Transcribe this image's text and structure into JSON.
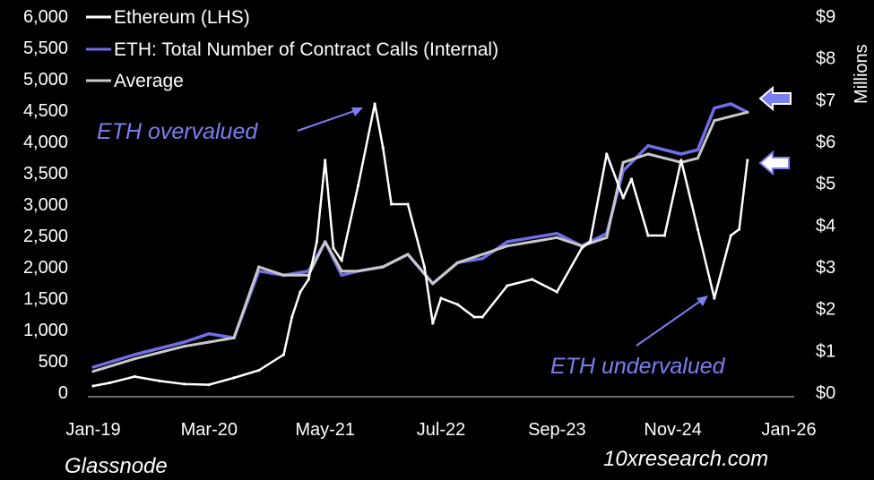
{
  "chart_data": {
    "type": "line",
    "legend": {
      "placement": "top-left",
      "entries": [
        {
          "label": "Ethereum (LHS)",
          "color": "#ffffff"
        },
        {
          "label": "ETH: Total Number of Contract Calls (Internal)",
          "color": "#6e6ee6"
        },
        {
          "label": "Average",
          "color": "#c8c8c8"
        }
      ]
    },
    "y_left": {
      "ticks": [
        "0",
        "500",
        "1,000",
        "1,500",
        "2,000",
        "2,500",
        "3,000",
        "3,500",
        "4,000",
        "4,500",
        "5,000",
        "5,500",
        "6,000"
      ],
      "ylim": [
        0,
        6000
      ]
    },
    "y_right": {
      "ticks": [
        "$0",
        "$1",
        "$2",
        "$3",
        "$4",
        "$5",
        "$6",
        "$7",
        "$8",
        "$9"
      ],
      "ylim": [
        0,
        9
      ],
      "unit_label": "Millions"
    },
    "x_axis": {
      "ticks": [
        "Jan-19",
        "Mar-20",
        "May-21",
        "Jul-22",
        "Sep-23",
        "Nov-24",
        "Jan-26"
      ],
      "xlim": [
        "2019-01",
        "2026-01"
      ]
    },
    "series": [
      {
        "name": "Ethereum (LHS)",
        "color": "#ffffff",
        "axis": "left",
        "x": [
          "2019-01",
          "2019-03",
          "2019-06",
          "2019-09",
          "2019-12",
          "2020-03",
          "2020-06",
          "2020-09",
          "2020-12",
          "2021-01",
          "2021-02",
          "2021-03",
          "2021-04",
          "2021-05",
          "2021-06",
          "2021-07",
          "2021-09",
          "2021-11",
          "2021-12",
          "2022-01",
          "2022-03",
          "2022-05",
          "2022-06",
          "2022-07",
          "2022-09",
          "2022-11",
          "2022-12",
          "2023-03",
          "2023-06",
          "2023-09",
          "2023-12",
          "2024-01",
          "2024-03",
          "2024-05",
          "2024-06",
          "2024-08",
          "2024-10",
          "2024-12",
          "2025-02",
          "2025-04",
          "2025-06",
          "2025-07",
          "2025-08"
        ],
        "values": [
          100,
          150,
          250,
          180,
          130,
          120,
          230,
          350,
          600,
          1200,
          1600,
          1800,
          2400,
          3700,
          2300,
          2100,
          3300,
          4600,
          3900,
          3000,
          3000,
          2000,
          1100,
          1500,
          1400,
          1200,
          1200,
          1700,
          1800,
          1600,
          2300,
          2400,
          3800,
          3100,
          3400,
          2500,
          2500,
          3700,
          2600,
          1500,
          2500,
          2600,
          3700
        ]
      },
      {
        "name": "ETH: Total Number of Contract Calls (Internal)",
        "color": "#6e6ee6",
        "axis": "right",
        "x": [
          "2019-01",
          "2019-06",
          "2019-12",
          "2020-03",
          "2020-06",
          "2020-09",
          "2020-12",
          "2021-03",
          "2021-05",
          "2021-07",
          "2021-09",
          "2021-12",
          "2022-03",
          "2022-06",
          "2022-09",
          "2022-12",
          "2023-03",
          "2023-06",
          "2023-09",
          "2023-12",
          "2024-03",
          "2024-05",
          "2024-08",
          "2024-12",
          "2025-02",
          "2025-04",
          "2025-06",
          "2025-08"
        ],
        "values": [
          0.6,
          0.9,
          1.2,
          1.4,
          1.3,
          2.9,
          2.8,
          2.9,
          3.6,
          2.8,
          2.9,
          3.0,
          3.3,
          2.6,
          3.1,
          3.2,
          3.6,
          3.7,
          3.8,
          3.5,
          3.8,
          5.3,
          5.9,
          5.7,
          5.8,
          6.8,
          6.9,
          6.7
        ]
      },
      {
        "name": "Average",
        "color": "#c8c8c8",
        "axis": "right",
        "x": [
          "2019-01",
          "2019-06",
          "2019-12",
          "2020-03",
          "2020-06",
          "2020-09",
          "2020-12",
          "2021-03",
          "2021-05",
          "2021-07",
          "2021-09",
          "2021-12",
          "2022-03",
          "2022-06",
          "2022-09",
          "2022-12",
          "2023-03",
          "2023-06",
          "2023-09",
          "2023-12",
          "2024-03",
          "2024-05",
          "2024-08",
          "2024-12",
          "2025-02",
          "2025-04",
          "2025-06",
          "2025-08"
        ],
        "values": [
          0.5,
          0.8,
          1.1,
          1.2,
          1.3,
          3.0,
          2.8,
          2.8,
          3.6,
          2.9,
          2.9,
          3.0,
          3.3,
          2.6,
          3.1,
          3.3,
          3.5,
          3.6,
          3.7,
          3.5,
          3.7,
          5.5,
          5.7,
          5.5,
          5.6,
          6.5,
          6.6,
          6.7
        ]
      }
    ],
    "annotations": [
      {
        "text": "ETH overvalued",
        "color": "#7b7ff0"
      },
      {
        "text": "ETH undervalued",
        "color": "#7b7ff0"
      }
    ]
  },
  "footer": {
    "source": "Glassnode",
    "brand": "10xresearch.com"
  }
}
